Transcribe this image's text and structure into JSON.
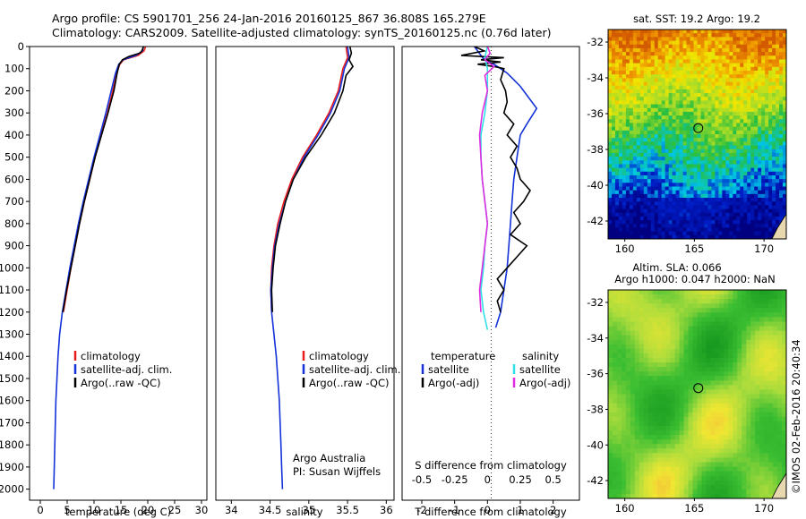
{
  "title_line1": "Argo profile: CS 5901701_256 24-Jan-2016 20160125_867 36.808S 165.279E",
  "title_line2": "Climatology: CARS2009. Satellite-adjusted climatology: synTS_20160125.nc (0.76d later)",
  "sst_header": "sat. SST: 19.2 Argo: 19.2",
  "sla_header1": "Altim. SLA: 0.066",
  "sla_header2": "Argo h1000: 0.047 h2000: NaN",
  "credit": "Argo Australia",
  "pi": "PI: Susan Wijffels",
  "watermark": "©IMOS 02-Feb-2016 20:40:34",
  "colors": {
    "climatology": "#e81c1c",
    "satellite": "#1432d8",
    "argo": "#000000",
    "sat_salinity": "#30e0e8",
    "argo_salinity_adj": "#e02ce0"
  },
  "chart_data": [
    {
      "type": "line",
      "id": "temperature",
      "xlabel": "temperature (deg C)",
      "ylabel": "",
      "xlim": [
        -2,
        31
      ],
      "ylim": [
        2050,
        0
      ],
      "xticks": [
        0,
        5,
        10,
        15,
        20,
        25,
        30
      ],
      "yticks": [
        0,
        100,
        200,
        300,
        400,
        500,
        600,
        700,
        800,
        900,
        1000,
        1100,
        1200,
        1300,
        1400,
        1500,
        1600,
        1700,
        1800,
        1900,
        2000
      ],
      "legend": [
        "climatology",
        "satellite-adj. clim.",
        "Argo(..raw -QC)"
      ],
      "series": [
        {
          "name": "climatology",
          "color": "#e81c1c",
          "points": [
            [
              19.6,
              0
            ],
            [
              19.3,
              20
            ],
            [
              18.2,
              40
            ],
            [
              15.5,
              60
            ],
            [
              14.8,
              80
            ],
            [
              14.2,
              120
            ],
            [
              13.5,
              200
            ],
            [
              12.5,
              300
            ],
            [
              11.3,
              400
            ],
            [
              10.2,
              500
            ],
            [
              9.2,
              600
            ],
            [
              8.2,
              700
            ],
            [
              7.3,
              800
            ],
            [
              6.5,
              900
            ],
            [
              5.7,
              1000
            ],
            [
              5.0,
              1100
            ],
            [
              4.3,
              1200
            ]
          ]
        },
        {
          "name": "satellite-adj. clim.",
          "color": "#1432d8",
          "points": [
            [
              19.2,
              0
            ],
            [
              19.0,
              20
            ],
            [
              17.8,
              40
            ],
            [
              15.4,
              60
            ],
            [
              14.6,
              80
            ],
            [
              14.0,
              120
            ],
            [
              13.2,
              200
            ],
            [
              12.2,
              300
            ],
            [
              11.1,
              400
            ],
            [
              10.0,
              500
            ],
            [
              9.0,
              600
            ],
            [
              8.0,
              700
            ],
            [
              7.1,
              800
            ],
            [
              6.3,
              900
            ],
            [
              5.5,
              1000
            ],
            [
              4.8,
              1100
            ],
            [
              4.1,
              1200
            ],
            [
              3.6,
              1300
            ],
            [
              3.3,
              1400
            ],
            [
              3.1,
              1500
            ],
            [
              2.9,
              1600
            ],
            [
              2.8,
              1700
            ],
            [
              2.7,
              1800
            ],
            [
              2.6,
              1900
            ],
            [
              2.5,
              2000
            ]
          ]
        },
        {
          "name": "Argo(..raw -QC)",
          "color": "#000000",
          "points": [
            [
              19.2,
              0
            ],
            [
              18.9,
              20
            ],
            [
              18.5,
              30
            ],
            [
              16.5,
              45
            ],
            [
              15.3,
              60
            ],
            [
              14.7,
              80
            ],
            [
              14.3,
              120
            ],
            [
              13.7,
              200
            ],
            [
              12.6,
              300
            ],
            [
              11.4,
              400
            ],
            [
              10.2,
              500
            ],
            [
              9.2,
              600
            ],
            [
              8.2,
              700
            ],
            [
              7.3,
              800
            ],
            [
              6.5,
              900
            ],
            [
              5.7,
              1000
            ],
            [
              4.9,
              1100
            ],
            [
              4.2,
              1200
            ]
          ]
        }
      ]
    },
    {
      "type": "line",
      "id": "salinity",
      "xlabel": "salinity",
      "ylabel": "",
      "xlim": [
        33.8,
        36.1
      ],
      "ylim": [
        2050,
        0
      ],
      "xticks": [
        34,
        34.5,
        35,
        35.5,
        36
      ],
      "legend": [
        "climatology",
        "satellite-adj. clim.",
        "Argo(..raw -QC)"
      ],
      "series": [
        {
          "name": "climatology",
          "color": "#e81c1c",
          "points": [
            [
              35.48,
              0
            ],
            [
              35.5,
              50
            ],
            [
              35.44,
              100
            ],
            [
              35.38,
              200
            ],
            [
              35.26,
              300
            ],
            [
              35.1,
              400
            ],
            [
              34.92,
              500
            ],
            [
              34.78,
              600
            ],
            [
              34.68,
              700
            ],
            [
              34.6,
              800
            ],
            [
              34.55,
              900
            ],
            [
              34.52,
              1000
            ],
            [
              34.51,
              1100
            ],
            [
              34.52,
              1200
            ]
          ]
        },
        {
          "name": "satellite-adj. clim.",
          "color": "#1432d8",
          "points": [
            [
              35.5,
              0
            ],
            [
              35.52,
              50
            ],
            [
              35.46,
              100
            ],
            [
              35.4,
              200
            ],
            [
              35.28,
              300
            ],
            [
              35.12,
              400
            ],
            [
              34.94,
              500
            ],
            [
              34.8,
              600
            ],
            [
              34.7,
              700
            ],
            [
              34.62,
              800
            ],
            [
              34.56,
              900
            ],
            [
              34.53,
              1000
            ],
            [
              34.51,
              1100
            ],
            [
              34.52,
              1200
            ],
            [
              34.55,
              1300
            ],
            [
              34.58,
              1400
            ],
            [
              34.6,
              1500
            ],
            [
              34.62,
              1600
            ],
            [
              34.63,
              1700
            ],
            [
              34.64,
              1800
            ],
            [
              34.65,
              1900
            ],
            [
              34.66,
              2000
            ]
          ]
        },
        {
          "name": "Argo(..raw -QC)",
          "color": "#000000",
          "points": [
            [
              35.53,
              0
            ],
            [
              35.55,
              30
            ],
            [
              35.52,
              60
            ],
            [
              35.57,
              90
            ],
            [
              35.48,
              130
            ],
            [
              35.44,
              200
            ],
            [
              35.33,
              300
            ],
            [
              35.16,
              400
            ],
            [
              34.96,
              500
            ],
            [
              34.8,
              600
            ],
            [
              34.7,
              700
            ],
            [
              34.63,
              800
            ],
            [
              34.57,
              900
            ],
            [
              34.54,
              1000
            ],
            [
              34.52,
              1100
            ],
            [
              34.53,
              1200
            ]
          ]
        }
      ]
    },
    {
      "type": "line",
      "id": "difference",
      "xlabel": "T difference from climatology",
      "xlabel2": "S difference from climatology",
      "xlim": [
        -2.6,
        2.8
      ],
      "ylim": [
        2050,
        0
      ],
      "xticks": [
        -2,
        -1,
        0,
        1,
        2
      ],
      "xticks_top": [
        -0.5,
        -0.25,
        0,
        0.25,
        0.5
      ],
      "legend_temperature": {
        "heading": "temperature",
        "items": [
          "satellite",
          "Argo(-adj)"
        ]
      },
      "legend_salinity": {
        "heading": "salinity",
        "items": [
          "satellite",
          "Argo(-adj)"
        ]
      },
      "series": [
        {
          "name": "satellite",
          "group": "temperature",
          "color": "#1432d8",
          "points": [
            [
              -0.4,
              0
            ],
            [
              -0.3,
              20
            ],
            [
              -0.2,
              40
            ],
            [
              -0.1,
              60
            ],
            [
              0.2,
              80
            ],
            [
              0.4,
              100
            ],
            [
              0.6,
              120
            ],
            [
              0.8,
              150
            ],
            [
              1.0,
              180
            ],
            [
              1.2,
              220
            ],
            [
              1.5,
              280
            ],
            [
              1.2,
              350
            ],
            [
              1.0,
              400
            ],
            [
              0.9,
              500
            ],
            [
              0.8,
              600
            ],
            [
              0.75,
              700
            ],
            [
              0.7,
              800
            ],
            [
              0.65,
              900
            ],
            [
              0.6,
              1000
            ],
            [
              0.5,
              1100
            ],
            [
              0.4,
              1200
            ],
            [
              0.25,
              1270
            ]
          ]
        },
        {
          "name": "Argo(-adj)",
          "group": "temperature",
          "color": "#000000",
          "points": [
            [
              -0.4,
              0
            ],
            [
              -0.1,
              20
            ],
            [
              -0.8,
              40
            ],
            [
              0.5,
              50
            ],
            [
              -0.2,
              60
            ],
            [
              0.4,
              70
            ],
            [
              -0.3,
              80
            ],
            [
              0.2,
              90
            ],
            [
              0.5,
              100
            ],
            [
              0.4,
              150
            ],
            [
              0.55,
              200
            ],
            [
              0.6,
              250
            ],
            [
              0.5,
              300
            ],
            [
              0.8,
              350
            ],
            [
              0.6,
              400
            ],
            [
              0.9,
              450
            ],
            [
              0.7,
              500
            ],
            [
              0.9,
              550
            ],
            [
              1.0,
              600
            ],
            [
              1.3,
              650
            ],
            [
              1.1,
              700
            ],
            [
              0.8,
              750
            ],
            [
              1.0,
              800
            ],
            [
              0.7,
              850
            ],
            [
              1.2,
              900
            ],
            [
              0.9,
              950
            ],
            [
              0.6,
              1000
            ],
            [
              0.3,
              1050
            ],
            [
              0.5,
              1100
            ],
            [
              0.3,
              1150
            ],
            [
              0.4,
              1200
            ]
          ]
        },
        {
          "name": "satellite",
          "group": "salinity",
          "color": "#30e0e8",
          "points": [
            [
              0.0,
              0
            ],
            [
              -0.02,
              50
            ],
            [
              0.0,
              100
            ],
            [
              0.0,
              200
            ],
            [
              -0.02,
              300
            ],
            [
              -0.05,
              400
            ],
            [
              -0.05,
              500
            ],
            [
              -0.04,
              600
            ],
            [
              -0.02,
              700
            ],
            [
              0.0,
              800
            ],
            [
              -0.02,
              900
            ],
            [
              -0.03,
              1000
            ],
            [
              -0.05,
              1100
            ],
            [
              -0.03,
              1200
            ],
            [
              0.0,
              1280
            ]
          ]
        },
        {
          "name": "Argo(-adj)",
          "group": "salinity",
          "color": "#e02ce0",
          "points": [
            [
              0.0,
              0
            ],
            [
              0.02,
              30
            ],
            [
              -0.02,
              60
            ],
            [
              0.05,
              90
            ],
            [
              -0.02,
              130
            ],
            [
              0.0,
              200
            ],
            [
              -0.04,
              300
            ],
            [
              -0.06,
              400
            ],
            [
              -0.05,
              500
            ],
            [
              -0.04,
              600
            ],
            [
              -0.02,
              700
            ],
            [
              0.0,
              800
            ],
            [
              -0.02,
              900
            ],
            [
              -0.04,
              1000
            ],
            [
              -0.06,
              1100
            ],
            [
              -0.05,
              1200
            ]
          ]
        }
      ]
    },
    {
      "type": "heatmap",
      "id": "sst_map",
      "title": "sat. SST: 19.2 Argo: 19.2",
      "xlim": [
        158.8,
        171.6
      ],
      "ylim": [
        -43.0,
        -31.3
      ],
      "xticks": [
        160,
        165,
        170
      ],
      "yticks": [
        -32,
        -34,
        -36,
        -38,
        -40,
        -42
      ],
      "marker": [
        165.279,
        -36.808
      ]
    },
    {
      "type": "heatmap",
      "id": "sla_map",
      "title": "Altim. SLA: 0.066",
      "xlim": [
        158.8,
        171.6
      ],
      "ylim": [
        -43.0,
        -31.3
      ],
      "xticks": [
        160,
        165,
        170
      ],
      "yticks": [
        -32,
        -34,
        -36,
        -38,
        -40,
        -42
      ],
      "marker": [
        165.279,
        -36.808
      ]
    }
  ]
}
